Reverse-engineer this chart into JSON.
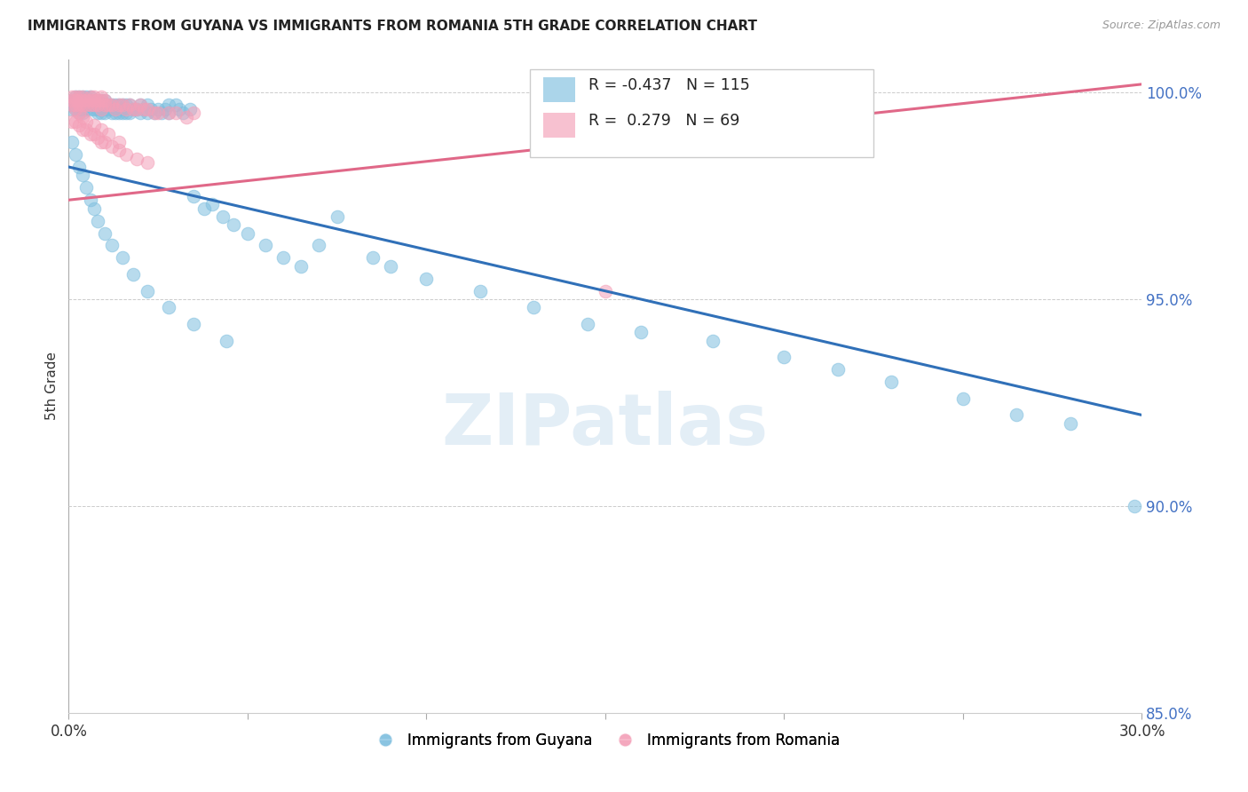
{
  "title": "IMMIGRANTS FROM GUYANA VS IMMIGRANTS FROM ROMANIA 5TH GRADE CORRELATION CHART",
  "source": "Source: ZipAtlas.com",
  "ylabel": "5th Grade",
  "xlim": [
    0.0,
    0.3
  ],
  "ylim": [
    0.875,
    1.008
  ],
  "yticks": [
    0.85,
    0.9,
    0.95,
    1.0
  ],
  "ytick_labels": [
    "85.0%",
    "90.0%",
    "95.0%",
    "100.0%"
  ],
  "guyana_R": -0.437,
  "guyana_N": 115,
  "romania_R": 0.279,
  "romania_N": 69,
  "guyana_color": "#7fbfdf",
  "romania_color": "#f4a0b8",
  "guyana_line_color": "#3070b8",
  "romania_line_color": "#e06888",
  "background_color": "#ffffff",
  "guyana_line_x0": 0.0,
  "guyana_line_y0": 0.982,
  "guyana_line_x1": 0.3,
  "guyana_line_y1": 0.922,
  "romania_line_x0": 0.0,
  "romania_line_y0": 0.974,
  "romania_line_x1": 0.3,
  "romania_line_y1": 1.002,
  "guyana_x": [
    0.001,
    0.001,
    0.001,
    0.002,
    0.002,
    0.002,
    0.002,
    0.003,
    0.003,
    0.003,
    0.003,
    0.003,
    0.004,
    0.004,
    0.004,
    0.004,
    0.004,
    0.005,
    0.005,
    0.005,
    0.005,
    0.006,
    0.006,
    0.006,
    0.006,
    0.007,
    0.007,
    0.007,
    0.008,
    0.008,
    0.008,
    0.008,
    0.009,
    0.009,
    0.009,
    0.009,
    0.01,
    0.01,
    0.01,
    0.01,
    0.011,
    0.011,
    0.012,
    0.012,
    0.012,
    0.013,
    0.013,
    0.014,
    0.014,
    0.015,
    0.015,
    0.015,
    0.016,
    0.016,
    0.017,
    0.017,
    0.018,
    0.019,
    0.02,
    0.02,
    0.021,
    0.022,
    0.022,
    0.023,
    0.024,
    0.025,
    0.026,
    0.027,
    0.028,
    0.028,
    0.03,
    0.031,
    0.032,
    0.034,
    0.035,
    0.038,
    0.04,
    0.043,
    0.046,
    0.05,
    0.055,
    0.06,
    0.065,
    0.07,
    0.075,
    0.085,
    0.09,
    0.1,
    0.115,
    0.13,
    0.145,
    0.16,
    0.18,
    0.2,
    0.215,
    0.23,
    0.25,
    0.265,
    0.28,
    0.001,
    0.002,
    0.003,
    0.004,
    0.005,
    0.006,
    0.007,
    0.008,
    0.01,
    0.012,
    0.015,
    0.018,
    0.022,
    0.028,
    0.035,
    0.044,
    0.298
  ],
  "guyana_y": [
    0.998,
    0.997,
    0.996,
    0.999,
    0.998,
    0.997,
    0.996,
    0.999,
    0.998,
    0.997,
    0.996,
    0.995,
    0.999,
    0.998,
    0.997,
    0.996,
    0.995,
    0.999,
    0.998,
    0.997,
    0.996,
    0.999,
    0.998,
    0.997,
    0.996,
    0.998,
    0.997,
    0.996,
    0.998,
    0.997,
    0.996,
    0.995,
    0.998,
    0.997,
    0.996,
    0.995,
    0.998,
    0.997,
    0.996,
    0.995,
    0.997,
    0.996,
    0.997,
    0.996,
    0.995,
    0.997,
    0.995,
    0.997,
    0.995,
    0.997,
    0.996,
    0.995,
    0.997,
    0.995,
    0.997,
    0.995,
    0.996,
    0.996,
    0.997,
    0.995,
    0.996,
    0.997,
    0.995,
    0.996,
    0.995,
    0.996,
    0.995,
    0.996,
    0.997,
    0.995,
    0.997,
    0.996,
    0.995,
    0.996,
    0.975,
    0.972,
    0.973,
    0.97,
    0.968,
    0.966,
    0.963,
    0.96,
    0.958,
    0.963,
    0.97,
    0.96,
    0.958,
    0.955,
    0.952,
    0.948,
    0.944,
    0.942,
    0.94,
    0.936,
    0.933,
    0.93,
    0.926,
    0.922,
    0.92,
    0.988,
    0.985,
    0.982,
    0.98,
    0.977,
    0.974,
    0.972,
    0.969,
    0.966,
    0.963,
    0.96,
    0.956,
    0.952,
    0.948,
    0.944,
    0.94,
    0.9
  ],
  "romania_x": [
    0.001,
    0.001,
    0.001,
    0.002,
    0.002,
    0.002,
    0.003,
    0.003,
    0.003,
    0.004,
    0.004,
    0.004,
    0.005,
    0.005,
    0.006,
    0.006,
    0.006,
    0.007,
    0.007,
    0.007,
    0.008,
    0.008,
    0.009,
    0.009,
    0.009,
    0.01,
    0.01,
    0.011,
    0.012,
    0.013,
    0.014,
    0.015,
    0.016,
    0.017,
    0.018,
    0.019,
    0.02,
    0.021,
    0.022,
    0.024,
    0.025,
    0.028,
    0.03,
    0.033,
    0.035,
    0.001,
    0.002,
    0.003,
    0.004,
    0.005,
    0.006,
    0.007,
    0.008,
    0.009,
    0.01,
    0.012,
    0.014,
    0.016,
    0.019,
    0.022,
    0.002,
    0.003,
    0.004,
    0.005,
    0.007,
    0.009,
    0.011,
    0.014,
    0.15
  ],
  "romania_y": [
    0.999,
    0.998,
    0.997,
    0.999,
    0.998,
    0.997,
    0.999,
    0.998,
    0.997,
    0.999,
    0.998,
    0.997,
    0.998,
    0.997,
    0.999,
    0.998,
    0.997,
    0.999,
    0.998,
    0.997,
    0.998,
    0.997,
    0.999,
    0.998,
    0.996,
    0.998,
    0.997,
    0.997,
    0.997,
    0.996,
    0.997,
    0.997,
    0.996,
    0.997,
    0.996,
    0.996,
    0.997,
    0.996,
    0.996,
    0.995,
    0.995,
    0.995,
    0.995,
    0.994,
    0.995,
    0.993,
    0.993,
    0.992,
    0.991,
    0.991,
    0.99,
    0.99,
    0.989,
    0.988,
    0.988,
    0.987,
    0.986,
    0.985,
    0.984,
    0.983,
    0.996,
    0.995,
    0.994,
    0.993,
    0.992,
    0.991,
    0.99,
    0.988,
    0.952
  ]
}
